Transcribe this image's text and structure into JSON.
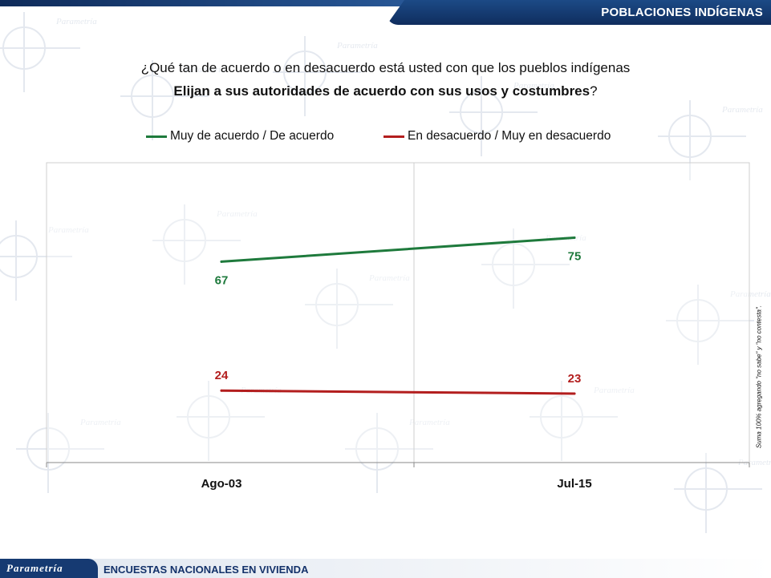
{
  "header": {
    "title": "POBLACIONES INDÍGENAS"
  },
  "question": {
    "line1": "¿Qué tan de acuerdo o en desacuerdo está usted con que los pueblos indígenas",
    "line2_bold": "Elijan a sus autoridades de acuerdo con sus usos y costumbres",
    "line2_suffix": "?"
  },
  "side_note": "Suma 100% agregando \"no sabe\" y \"no contesta\".",
  "footer": {
    "logo": "Parametría",
    "text": "ENCUESTAS NACIONALES EN VIVIENDA"
  },
  "watermark": {
    "text": "Parametría"
  },
  "chart_data": {
    "type": "line",
    "title": "",
    "xlabel": "",
    "ylabel": "",
    "categories": [
      "Ago-03",
      "Jul-15"
    ],
    "ylim": [
      0,
      100
    ],
    "grid": false,
    "legend_position": "top",
    "series": [
      {
        "name": "Muy de acuerdo / De acuerdo",
        "values": [
          67,
          75
        ],
        "color": "#1e7a3c"
      },
      {
        "name": "En desacuerdo / Muy en desacuerdo",
        "values": [
          24,
          23
        ],
        "color": "#b31e1e"
      }
    ]
  }
}
